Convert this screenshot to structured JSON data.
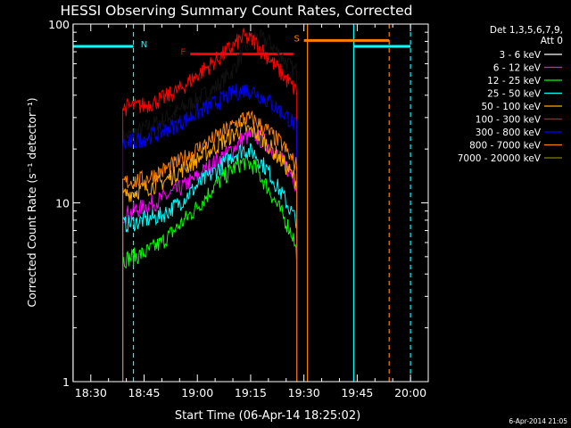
{
  "chart_data": {
    "type": "line",
    "title": "HESSI Observing Summary Count Rates, Corrected",
    "xlabel": "Start Time (06-Apr-14 18:25:02)",
    "ylabel": "Corrected Count Rate (s⁻¹ detector⁻¹)",
    "y_scale": "log",
    "ylim": [
      1,
      100
    ],
    "xlim": [
      "18:25:02",
      "20:05:00"
    ],
    "x_ticks": [
      "18:30",
      "18:45",
      "19:00",
      "19:15",
      "19:30",
      "19:45",
      "20:00"
    ],
    "y_ticks": [
      "1",
      "10",
      "100"
    ],
    "legend": {
      "header": [
        "Det 1,3,5,6,7,9,",
        "Att 0"
      ],
      "placement": "right",
      "entries": [
        {
          "label": "3 - 6 keV",
          "color": "#ffffff"
        },
        {
          "label": "6 - 12 keV",
          "color": "#ff00ff"
        },
        {
          "label": "12 - 25 keV",
          "color": "#00ff00"
        },
        {
          "label": "25 - 50 keV",
          "color": "#00ffff"
        },
        {
          "label": "50 - 100 keV",
          "color": "#ffaa00"
        },
        {
          "label": "100 - 300 keV",
          "color": "#ff0000"
        },
        {
          "label": "300 - 800 keV",
          "color": "#0000ff"
        },
        {
          "label": "800 - 7000 keV",
          "color": "#ff8000"
        },
        {
          "label": "7000 - 20000 keV",
          "color": "#808000"
        }
      ]
    },
    "series": [
      {
        "name": "3 - 6 keV",
        "color": "#111111",
        "x": [
          "18:39",
          "18:45",
          "18:50",
          "18:55",
          "19:00",
          "19:05",
          "19:10",
          "19:13",
          "19:16",
          "19:20",
          "19:24",
          "19:27",
          "19:28"
        ],
        "y": [
          23,
          26,
          29,
          33,
          38,
          44,
          55,
          70,
          85,
          80,
          65,
          55,
          55
        ]
      },
      {
        "name": "6 - 12 keV",
        "color": "#ff00ff",
        "x": [
          "18:39",
          "18:45",
          "18:50",
          "18:55",
          "19:00",
          "19:05",
          "19:10",
          "19:13",
          "19:16",
          "19:20",
          "19:24",
          "19:27",
          "19:28"
        ],
        "y": [
          8.5,
          9.5,
          10.5,
          12,
          14,
          17,
          20,
          23,
          24,
          21,
          17,
          14,
          12
        ]
      },
      {
        "name": "12 - 25 keV",
        "color": "#00ff00",
        "x": [
          "18:39",
          "18:45",
          "18:50",
          "18:55",
          "19:00",
          "19:05",
          "19:10",
          "19:13",
          "19:16",
          "19:20",
          "19:24",
          "19:27",
          "19:28"
        ],
        "y": [
          4.8,
          5.2,
          6,
          7.5,
          9.5,
          12.5,
          15.5,
          17,
          16,
          12,
          8.5,
          6.5,
          5
        ]
      },
      {
        "name": "25 - 50 keV",
        "color": "#00ffff",
        "x": [
          "18:39",
          "18:45",
          "18:50",
          "18:55",
          "19:00",
          "19:05",
          "19:10",
          "19:13",
          "19:16",
          "19:20",
          "19:24",
          "19:27",
          "19:28"
        ],
        "y": [
          7.5,
          8,
          8.5,
          10,
          12.5,
          15,
          18.5,
          20,
          19,
          15,
          11,
          8.5,
          8
        ]
      },
      {
        "name": "50 - 100 keV",
        "color": "#ffaa00",
        "x": [
          "18:39",
          "18:45",
          "18:50",
          "18:55",
          "19:00",
          "19:05",
          "19:10",
          "19:13",
          "19:16",
          "19:20",
          "19:24",
          "19:27",
          "19:28"
        ],
        "y": [
          11,
          12,
          13,
          15,
          17.5,
          20.5,
          24,
          26,
          25,
          21,
          17,
          14,
          13
        ]
      },
      {
        "name": "100 - 300 keV",
        "color": "#ff0000",
        "x": [
          "18:39",
          "18:45",
          "18:50",
          "18:55",
          "19:00",
          "19:05",
          "19:10",
          "19:13",
          "19:16",
          "19:20",
          "19:24",
          "19:27",
          "19:28"
        ],
        "y": [
          34,
          35,
          38,
          43,
          52,
          62,
          75,
          85,
          80,
          65,
          52,
          44,
          42
        ]
      },
      {
        "name": "300 - 800 keV",
        "color": "#0000ff",
        "x": [
          "18:39",
          "18:45",
          "18:50",
          "18:55",
          "19:00",
          "19:05",
          "19:10",
          "19:13",
          "19:16",
          "19:20",
          "19:24",
          "19:27",
          "19:28"
        ],
        "y": [
          21,
          23,
          25,
          28,
          32,
          36,
          41,
          43,
          42,
          37,
          32,
          28,
          26
        ]
      },
      {
        "name": "800 - 7000 keV",
        "color": "#ff8000",
        "x": [
          "18:39",
          "18:45",
          "18:50",
          "18:55",
          "19:00",
          "19:05",
          "19:10",
          "19:13",
          "19:16",
          "19:20",
          "19:24",
          "19:27",
          "19:28"
        ],
        "y": [
          13,
          13.5,
          15,
          17,
          20,
          23,
          27,
          30,
          29,
          25,
          21,
          17,
          16
        ]
      }
    ],
    "bars": [
      {
        "label": "N",
        "color": "#00ffff",
        "level": 75,
        "segments": [
          [
            "18:25",
            "18:42"
          ],
          [
            "19:44",
            "20:00"
          ]
        ],
        "label_at": "18:45"
      },
      {
        "label": "F",
        "color": "#ff0000",
        "level": 68,
        "segments": [
          [
            "18:58",
            "19:27"
          ]
        ],
        "label_at": "18:56"
      },
      {
        "label": "S",
        "color": "#ff8000",
        "level": 81,
        "segments": [
          [
            "19:30",
            "19:54"
          ]
        ],
        "label_at": "19:28"
      }
    ],
    "vlines": [
      {
        "x": "18:25",
        "color": "#00ffff",
        "dash": false
      },
      {
        "x": "18:42",
        "color": "#00ffff",
        "dash": true
      },
      {
        "x": "19:31",
        "color": "#ff8000",
        "dash": false
      },
      {
        "x": "19:44",
        "color": "#00ffff",
        "dash": false
      },
      {
        "x": "19:54",
        "color": "#ff8000",
        "dash": true
      },
      {
        "x": "20:00",
        "color": "#00ffff",
        "dash": true
      }
    ],
    "footer_date": "6-Apr-2014 21:05"
  }
}
